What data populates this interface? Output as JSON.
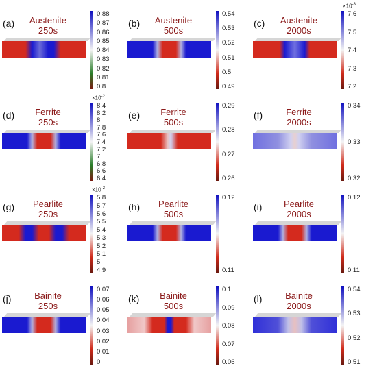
{
  "panels": [
    {
      "id": "(a)",
      "phase": "Austenite",
      "time": "250s",
      "scheme": "red-center-blue",
      "cb": "green",
      "ticks": [
        "0.88",
        "0.87",
        "0.86",
        "0.85",
        "0.84",
        "0.83",
        "0.82",
        "0.81",
        "0.8"
      ],
      "exp": ""
    },
    {
      "id": "(b)",
      "phase": "Austenite",
      "time": "500s",
      "scheme": "blue-red-center",
      "cb": "bwr",
      "ticks": [
        "0.54",
        "0.53",
        "0.52",
        "0.51",
        "0.5",
        "0.49"
      ],
      "exp": ""
    },
    {
      "id": "(c)",
      "phase": "Austenite",
      "time": "2000s",
      "scheme": "red-blue-center",
      "cb": "bwr",
      "ticks": [
        "7.6",
        "7.5",
        "7.4",
        "7.3",
        "7.2"
      ],
      "exp": "×10",
      "exppow": "-3"
    },
    {
      "id": "(d)",
      "phase": "Ferrite",
      "time": "250s",
      "scheme": "blue-red-center",
      "cb": "green",
      "ticks": [
        "8.4",
        "8.2",
        "8",
        "7.8",
        "7.6",
        "7.4",
        "7.2",
        "7",
        "6.8",
        "6.6",
        "6.4"
      ],
      "exp": "×10",
      "exppow": "-2"
    },
    {
      "id": "(e)",
      "phase": "Ferrite",
      "time": "500s",
      "scheme": "red-light-center",
      "cb": "bwr",
      "ticks": [
        "0.29",
        "0.28",
        "0.27",
        "0.26"
      ],
      "exp": ""
    },
    {
      "id": "(f)",
      "phase": "Ferrite",
      "time": "2000s",
      "scheme": "light-blue",
      "cb": "bwr",
      "ticks": [
        "0.34",
        "0.33",
        "0.32"
      ],
      "exp": ""
    },
    {
      "id": "(g)",
      "phase": "Pearlite",
      "time": "250s",
      "scheme": "red-blue-red",
      "cb": "bwr",
      "ticks": [
        "5.8",
        "5.7",
        "5.6",
        "5.5",
        "5.4",
        "5.3",
        "5.2",
        "5.1",
        "5",
        "4.9"
      ],
      "exp": "×10",
      "exppow": "-2"
    },
    {
      "id": "(h)",
      "phase": "Pearlite",
      "time": "500s",
      "scheme": "blue-red-center",
      "cb": "bwr",
      "ticks": [
        "0.12",
        "0.11"
      ],
      "exp": ""
    },
    {
      "id": "(i)",
      "phase": "Pearlite",
      "time": "2000s",
      "scheme": "blue-red-center",
      "cb": "bwr",
      "ticks": [
        "0.12",
        "0.11"
      ],
      "exp": ""
    },
    {
      "id": "(j)",
      "phase": "Bainite",
      "time": "250s",
      "scheme": "blue-red-center",
      "cb": "bwr",
      "ticks": [
        "0.07",
        "0.06",
        "0.05",
        "0.04",
        "0.03",
        "0.02",
        "0.01",
        "0"
      ],
      "exp": ""
    },
    {
      "id": "(k)",
      "phase": "Bainite",
      "time": "500s",
      "scheme": "pale-red-bluecenter",
      "cb": "bwr",
      "ticks": [
        "0.1",
        "0.09",
        "0.08",
        "0.07",
        "0.06"
      ],
      "exp": ""
    },
    {
      "id": "(l)",
      "phase": "Bainite",
      "time": "2000s",
      "scheme": "blue-pale-center",
      "cb": "bwr",
      "ticks": [
        "0.54",
        "0.53",
        "0.52",
        "0.51"
      ],
      "exp": ""
    }
  ],
  "colors": {
    "red": "#d42a1e",
    "blue": "#1a1ad0",
    "title": "#8b1a1a"
  }
}
